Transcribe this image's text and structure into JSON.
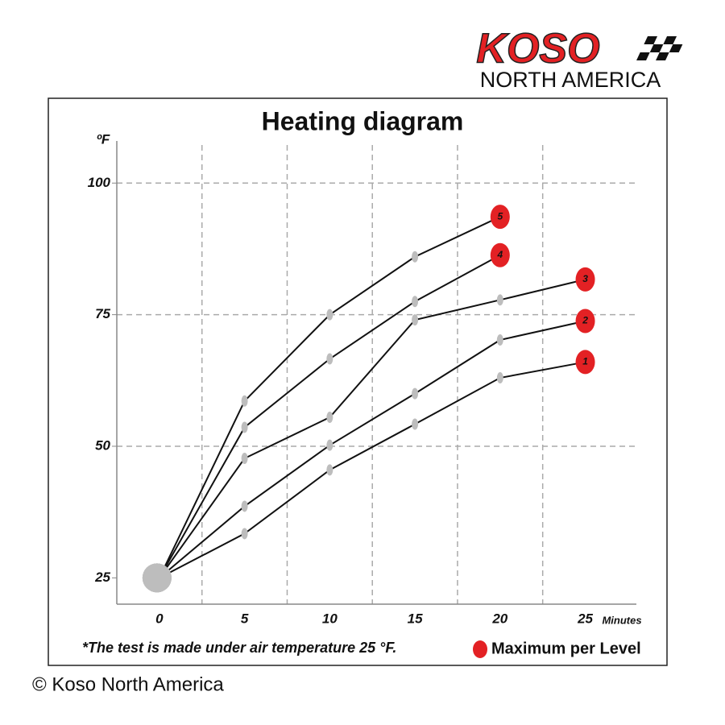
{
  "logo": {
    "brand": "KOSO",
    "subtitle": "NORTH AMERICA"
  },
  "chart_data": {
    "type": "line",
    "title": "Heating diagram",
    "x_label": "Minutes",
    "y_label": "ºF",
    "x": [
      0,
      5,
      10,
      15,
      20,
      25
    ],
    "xlim": [
      -2.5,
      28
    ],
    "xticks": [
      0,
      5,
      10,
      15,
      20,
      25
    ],
    "x_grid_lines": [
      2.5,
      7.5,
      12.5,
      17.5,
      22.5
    ],
    "ylim": [
      20,
      108
    ],
    "yticks": [
      25,
      50,
      75,
      100
    ],
    "y_grid_lines": [
      50,
      75,
      100
    ],
    "grid": true,
    "line_color": "#111111",
    "marker_color": "#bdbdbd",
    "end_color": "#e32124",
    "series": [
      {
        "name": "1",
        "values": [
          25,
          33.4,
          45.5,
          54.2,
          63,
          66
        ]
      },
      {
        "name": "2",
        "values": [
          25,
          38.6,
          50.2,
          60,
          70.2,
          73.8
        ]
      },
      {
        "name": "3",
        "values": [
          25,
          47.7,
          55.5,
          74,
          77.8,
          81.7
        ]
      },
      {
        "name": "4",
        "values": [
          25,
          53.6,
          66.6,
          77.5,
          86.3,
          null
        ]
      },
      {
        "name": "5",
        "values": [
          25,
          58.6,
          75,
          86,
          93.6,
          null
        ]
      }
    ],
    "note": "*The test is made under air temperature 25 °F.",
    "legend_label": "Maximum per Level"
  },
  "copyright": "© Koso North America"
}
